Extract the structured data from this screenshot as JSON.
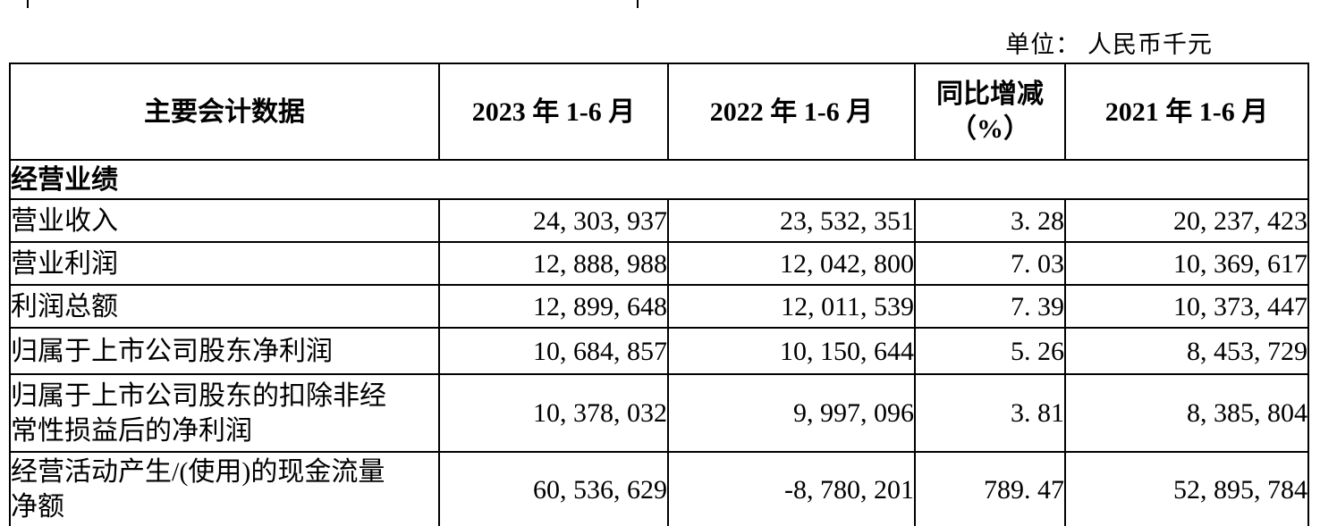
{
  "unit_note": "单位： 人民币千元",
  "table": {
    "headers": {
      "metric": "主要会计数据",
      "h2023": "2023 年 1-6 月",
      "h2022": "2022 年 1-6 月",
      "yoy": "同比增减\n（%）",
      "h2021": "2021 年 1-6 月"
    },
    "section_label": "经营业绩",
    "rows": [
      {
        "label": "营业收入",
        "v2023": "24, 303, 937",
        "v2022": "23, 532, 351",
        "yoy": "3. 28",
        "v2021": "20, 237, 423"
      },
      {
        "label": "营业利润",
        "v2023": "12, 888, 988",
        "v2022": "12, 042, 800",
        "yoy": "7. 03",
        "v2021": "10, 369, 617"
      },
      {
        "label": "利润总额",
        "v2023": "12, 899, 648",
        "v2022": "12, 011, 539",
        "yoy": "7. 39",
        "v2021": "10, 373, 447"
      },
      {
        "label": "归属于上市公司股东净利润",
        "v2023": "10, 684, 857",
        "v2022": "10, 150, 644",
        "yoy": "5. 26",
        "v2021": "8, 453, 729"
      },
      {
        "label": "归属于上市公司股东的扣除非经\n常性损益后的净利润",
        "v2023": "10, 378, 032",
        "v2022": "9, 997, 096",
        "yoy": "3. 81",
        "v2021": "8, 385, 804"
      },
      {
        "label": "经营活动产生/(使用)的现金流量\n净额",
        "v2023": "60, 536, 629",
        "v2022": "-8, 780, 201",
        "yoy": "789. 47",
        "v2021": "52, 895, 784"
      }
    ]
  },
  "chart_data": {
    "type": "table",
    "title": "主要会计数据",
    "unit": "人民币千元",
    "columns": [
      "主要会计数据",
      "2023 年 1-6 月",
      "2022 年 1-6 月",
      "同比增减（%）",
      "2021 年 1-6 月"
    ],
    "section": "经营业绩",
    "rows": [
      [
        "营业收入",
        24303937,
        23532351,
        3.28,
        20237423
      ],
      [
        "营业利润",
        12888988,
        12042800,
        7.03,
        10369617
      ],
      [
        "利润总额",
        12899648,
        12011539,
        7.39,
        10373447
      ],
      [
        "归属于上市公司股东净利润",
        10684857,
        10150644,
        5.26,
        8453729
      ],
      [
        "归属于上市公司股东的扣除非经常性损益后的净利润",
        10378032,
        9997096,
        3.81,
        8385804
      ],
      [
        "经营活动产生/(使用)的现金流量净额",
        60536629,
        -8780201,
        789.47,
        52895784
      ]
    ]
  },
  "colors": {
    "text": "#000000",
    "border": "#000000",
    "background": "#ffffff"
  }
}
